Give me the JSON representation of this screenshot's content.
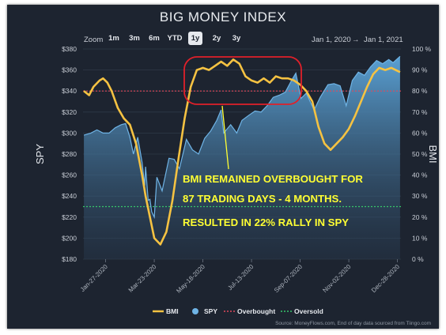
{
  "title": "BIG MONEY INDEX",
  "zoom": {
    "label": "Zoom",
    "buttons": [
      "1m",
      "3m",
      "6m",
      "YTD",
      "1y",
      "2y",
      "3y"
    ],
    "active": "1y"
  },
  "range": {
    "from": "Jan 1, 2020",
    "arrow": "→",
    "to": "Jan 1, 2021"
  },
  "source": "Source: MoneyFlows.com, End of day data sourced from Tiingo.com",
  "colors": {
    "bmi": "#f5c242",
    "spy": "#6fb4e6",
    "overbought": "#e0485a",
    "oversold": "#37c76a",
    "annotation": "#ffff33",
    "ellipse": "#e0202a"
  },
  "annotation": {
    "lines": [
      "BMI REMAINED OVERBOUGHT FOR",
      "87 TRADING DAYS -  4 MONTHS.",
      "RESULTED IN 22% RALLY IN SPY"
    ]
  },
  "chart_data": {
    "type": "line",
    "ylabel_left": "SPY",
    "ylabel_right": "BMI",
    "y_left_ticks": [
      "$180",
      "$200",
      "$220",
      "$240",
      "$260",
      "$280",
      "$300",
      "$320",
      "$340",
      "$360",
      "$380"
    ],
    "y_left_range": [
      180,
      380
    ],
    "y_right_ticks": [
      "0 %",
      "10 %",
      "20 %",
      "30 %",
      "40 %",
      "50 %",
      "60 %",
      "70 %",
      "80 %",
      "90 %",
      "100 %"
    ],
    "y_right_range": [
      0,
      100
    ],
    "x_ticks": [
      {
        "date": "2020-01-27",
        "label": "Jan-27-2020"
      },
      {
        "date": "2020-03-23",
        "label": "Mar-23-2020"
      },
      {
        "date": "2020-05-18",
        "label": "May-18-2020"
      },
      {
        "date": "2020-07-13",
        "label": "Jul-13-2020"
      },
      {
        "date": "2020-09-07",
        "label": "Sep-07-2020"
      },
      {
        "date": "2020-11-02",
        "label": "Nov-02-2020"
      },
      {
        "date": "2020-12-28",
        "label": "Dec-28-2020"
      }
    ],
    "x_range": [
      "2020-01-01",
      "2021-01-01"
    ],
    "overbought_level": 80,
    "oversold_level": 25,
    "legend": [
      {
        "key": "bmi",
        "label": "BMI"
      },
      {
        "key": "spy",
        "label": "SPY"
      },
      {
        "key": "overbought",
        "label": "Overbought"
      },
      {
        "key": "oversold",
        "label": "Oversold"
      }
    ],
    "legend_position": "bottom",
    "series": [
      {
        "name": "SPY",
        "axis": "left",
        "points": [
          [
            "2020-01-02",
            298
          ],
          [
            "2020-01-10",
            300
          ],
          [
            "2020-01-17",
            303
          ],
          [
            "2020-01-24",
            300
          ],
          [
            "2020-01-31",
            300
          ],
          [
            "2020-02-07",
            305
          ],
          [
            "2020-02-14",
            308
          ],
          [
            "2020-02-19",
            309
          ],
          [
            "2020-02-24",
            296
          ],
          [
            "2020-02-28",
            280
          ],
          [
            "2020-03-04",
            296
          ],
          [
            "2020-03-09",
            272
          ],
          [
            "2020-03-12",
            250
          ],
          [
            "2020-03-13",
            268
          ],
          [
            "2020-03-16",
            236
          ],
          [
            "2020-03-18",
            237
          ],
          [
            "2020-03-20",
            225
          ],
          [
            "2020-03-23",
            220
          ],
          [
            "2020-03-26",
            258
          ],
          [
            "2020-04-01",
            245
          ],
          [
            "2020-04-09",
            276
          ],
          [
            "2020-04-15",
            275
          ],
          [
            "2020-04-21",
            266
          ],
          [
            "2020-04-29",
            294
          ],
          [
            "2020-05-06",
            284
          ],
          [
            "2020-05-13",
            280
          ],
          [
            "2020-05-20",
            295
          ],
          [
            "2020-05-27",
            302
          ],
          [
            "2020-06-03",
            312
          ],
          [
            "2020-06-08",
            322
          ],
          [
            "2020-06-11",
            300
          ],
          [
            "2020-06-19",
            308
          ],
          [
            "2020-06-26",
            300
          ],
          [
            "2020-07-02",
            312
          ],
          [
            "2020-07-10",
            317
          ],
          [
            "2020-07-17",
            321
          ],
          [
            "2020-07-24",
            320
          ],
          [
            "2020-07-31",
            326
          ],
          [
            "2020-08-07",
            334
          ],
          [
            "2020-08-14",
            336
          ],
          [
            "2020-08-21",
            339
          ],
          [
            "2020-08-28",
            350
          ],
          [
            "2020-09-02",
            357
          ],
          [
            "2020-09-08",
            333
          ],
          [
            "2020-09-14",
            338
          ],
          [
            "2020-09-23",
            322
          ],
          [
            "2020-09-30",
            334
          ],
          [
            "2020-10-09",
            346
          ],
          [
            "2020-10-16",
            347
          ],
          [
            "2020-10-23",
            345
          ],
          [
            "2020-10-30",
            326
          ],
          [
            "2020-11-06",
            350
          ],
          [
            "2020-11-13",
            358
          ],
          [
            "2020-11-20",
            355
          ],
          [
            "2020-11-27",
            363
          ],
          [
            "2020-12-04",
            369
          ],
          [
            "2020-12-11",
            366
          ],
          [
            "2020-12-18",
            370
          ],
          [
            "2020-12-23",
            367
          ],
          [
            "2020-12-31",
            373
          ]
        ]
      },
      {
        "name": "BMI",
        "axis": "right",
        "points": [
          [
            "2020-01-02",
            80
          ],
          [
            "2020-01-08",
            78
          ],
          [
            "2020-01-13",
            82
          ],
          [
            "2020-01-20",
            85
          ],
          [
            "2020-01-24",
            86
          ],
          [
            "2020-01-29",
            84
          ],
          [
            "2020-02-03",
            80
          ],
          [
            "2020-02-10",
            72
          ],
          [
            "2020-02-17",
            67
          ],
          [
            "2020-02-24",
            64
          ],
          [
            "2020-03-02",
            55
          ],
          [
            "2020-03-09",
            40
          ],
          [
            "2020-03-13",
            30
          ],
          [
            "2020-03-18",
            20
          ],
          [
            "2020-03-23",
            10
          ],
          [
            "2020-03-30",
            7
          ],
          [
            "2020-04-06",
            13
          ],
          [
            "2020-04-13",
            28
          ],
          [
            "2020-04-20",
            48
          ],
          [
            "2020-04-27",
            67
          ],
          [
            "2020-05-04",
            82
          ],
          [
            "2020-05-11",
            90
          ],
          [
            "2020-05-18",
            91
          ],
          [
            "2020-05-25",
            90
          ],
          [
            "2020-06-01",
            92
          ],
          [
            "2020-06-08",
            94
          ],
          [
            "2020-06-15",
            92
          ],
          [
            "2020-06-22",
            95
          ],
          [
            "2020-06-29",
            93
          ],
          [
            "2020-07-06",
            87
          ],
          [
            "2020-07-13",
            85
          ],
          [
            "2020-07-20",
            84
          ],
          [
            "2020-07-27",
            86
          ],
          [
            "2020-08-03",
            84
          ],
          [
            "2020-08-10",
            87
          ],
          [
            "2020-08-17",
            86
          ],
          [
            "2020-08-24",
            86
          ],
          [
            "2020-08-31",
            85
          ],
          [
            "2020-09-07",
            83
          ],
          [
            "2020-09-14",
            80
          ],
          [
            "2020-09-21",
            75
          ],
          [
            "2020-09-28",
            63
          ],
          [
            "2020-10-05",
            55
          ],
          [
            "2020-10-12",
            52
          ],
          [
            "2020-10-19",
            55
          ],
          [
            "2020-10-26",
            58
          ],
          [
            "2020-11-02",
            62
          ],
          [
            "2020-11-09",
            68
          ],
          [
            "2020-11-16",
            75
          ],
          [
            "2020-11-23",
            82
          ],
          [
            "2020-11-30",
            88
          ],
          [
            "2020-12-07",
            91
          ],
          [
            "2020-12-14",
            90
          ],
          [
            "2020-12-21",
            91
          ],
          [
            "2020-12-31",
            89
          ]
        ]
      }
    ]
  }
}
